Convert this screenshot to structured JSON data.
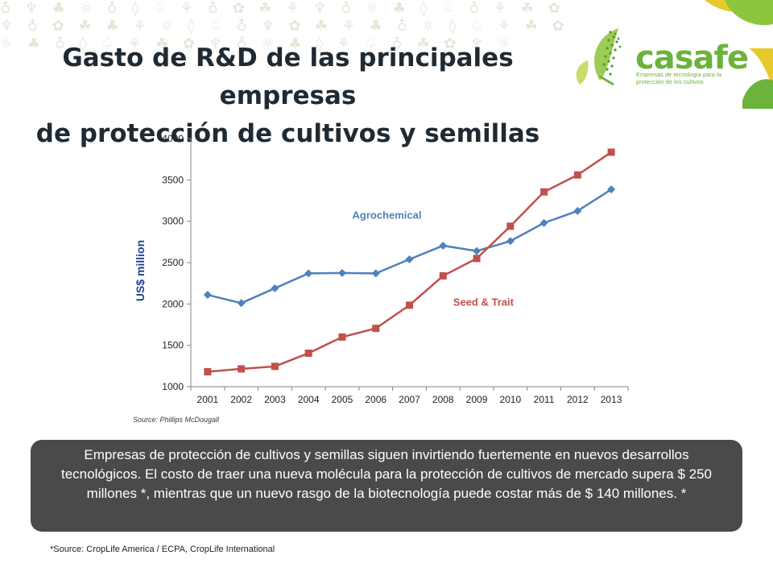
{
  "slide": {
    "title_line1": "Gasto de R&D de las principales empresas",
    "title_line2": "de protección de cultivos y semillas",
    "callout": "Empresas de protección de cultivos y semillas siguen invirtiendo fuertemente en nuevos desarrollos tecnológicos. El costo de traer una nueva molécula para la protección de cultivos de mercado supera $ 250 millones *, mientras que un nuevo rasgo de la biotecnología puede costar más de $ 140 millones. *",
    "footnote": "*Source: CropLife America / ECPA, CropLife International",
    "chart_source": "Source: Phillips McDougall"
  },
  "logo": {
    "name": "casafe",
    "tagline": "Empresas de tecnología para la protección de los cultivos",
    "green": "#6bb33c",
    "yellow": "#e6c92a"
  },
  "chart_data": {
    "type": "line",
    "categories": [
      "2001",
      "2002",
      "2003",
      "2004",
      "2005",
      "2006",
      "2007",
      "2008",
      "2009",
      "2010",
      "2011",
      "2012",
      "2013"
    ],
    "ylabel": "US$ million",
    "ylim": [
      1000,
      4000
    ],
    "yticks": [
      "1000",
      "1500",
      "2000",
      "2500",
      "3000",
      "3500",
      "4000"
    ],
    "grid": false,
    "series": [
      {
        "name": "Agrochemical",
        "color": "#4f81bd",
        "marker": "diamond",
        "values": [
          2110,
          2010,
          2190,
          2370,
          2375,
          2370,
          2540,
          2705,
          2640,
          2760,
          2980,
          3125,
          3385
        ]
      },
      {
        "name": "Seed & Trait",
        "color": "#c0504d",
        "marker": "square",
        "values": [
          1180,
          1215,
          1245,
          1405,
          1600,
          1705,
          1985,
          2340,
          2550,
          2940,
          3355,
          3560,
          3835
        ]
      }
    ]
  }
}
